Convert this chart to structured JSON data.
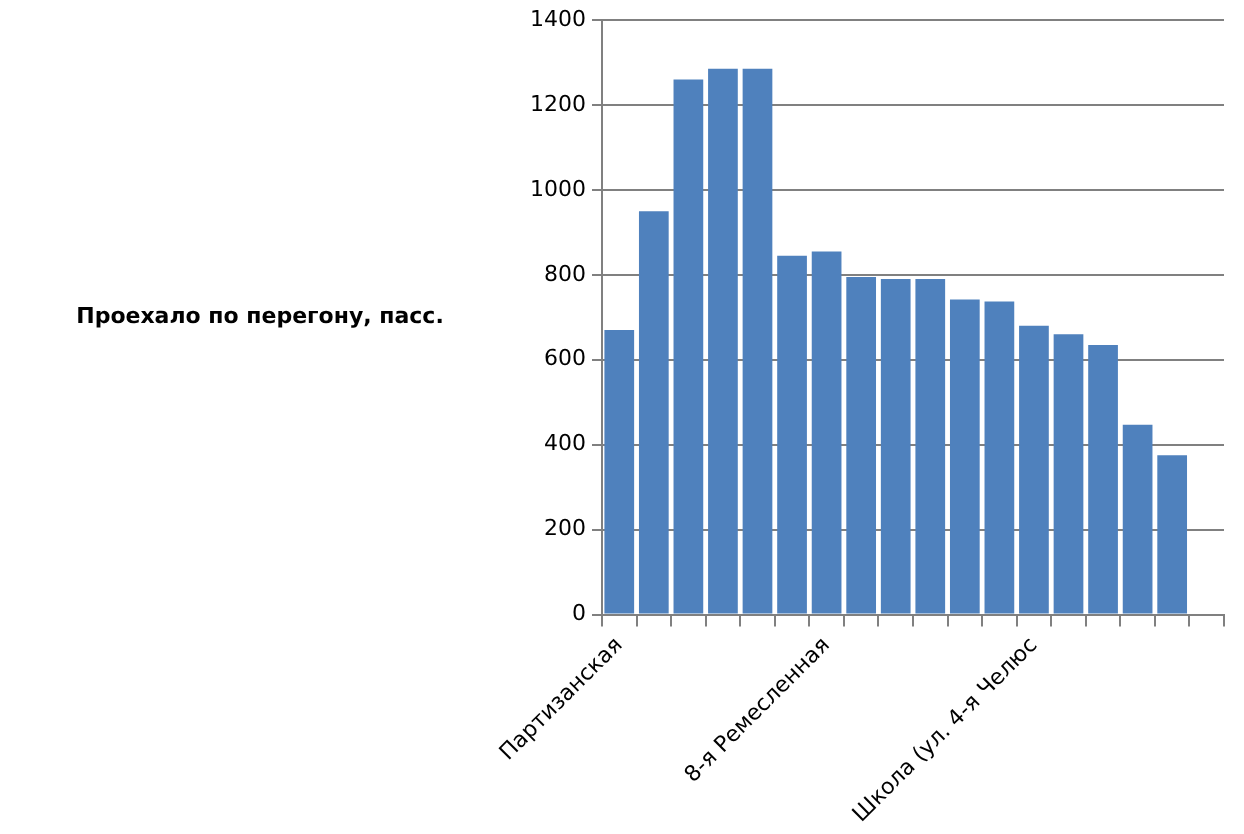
{
  "chart_data": {
    "type": "bar",
    "ylabel": "Проехало по перегону, пасс.",
    "categories": [
      "Партизанская",
      null,
      null,
      null,
      null,
      null,
      "8-я Ремесленная",
      null,
      null,
      null,
      null,
      null,
      "Школа (ул. 4-я Челюс",
      null,
      null,
      null,
      null,
      null
    ],
    "values": [
      670,
      950,
      1260,
      1285,
      1285,
      845,
      855,
      795,
      790,
      790,
      742,
      737,
      680,
      660,
      635,
      447,
      375,
      null
    ],
    "color": "#4f81bd",
    "ylim": [
      0,
      1400
    ],
    "yticks": [
      0,
      200,
      400,
      600,
      800,
      1000,
      1200,
      1400
    ],
    "grid": "y",
    "legend": false
  }
}
